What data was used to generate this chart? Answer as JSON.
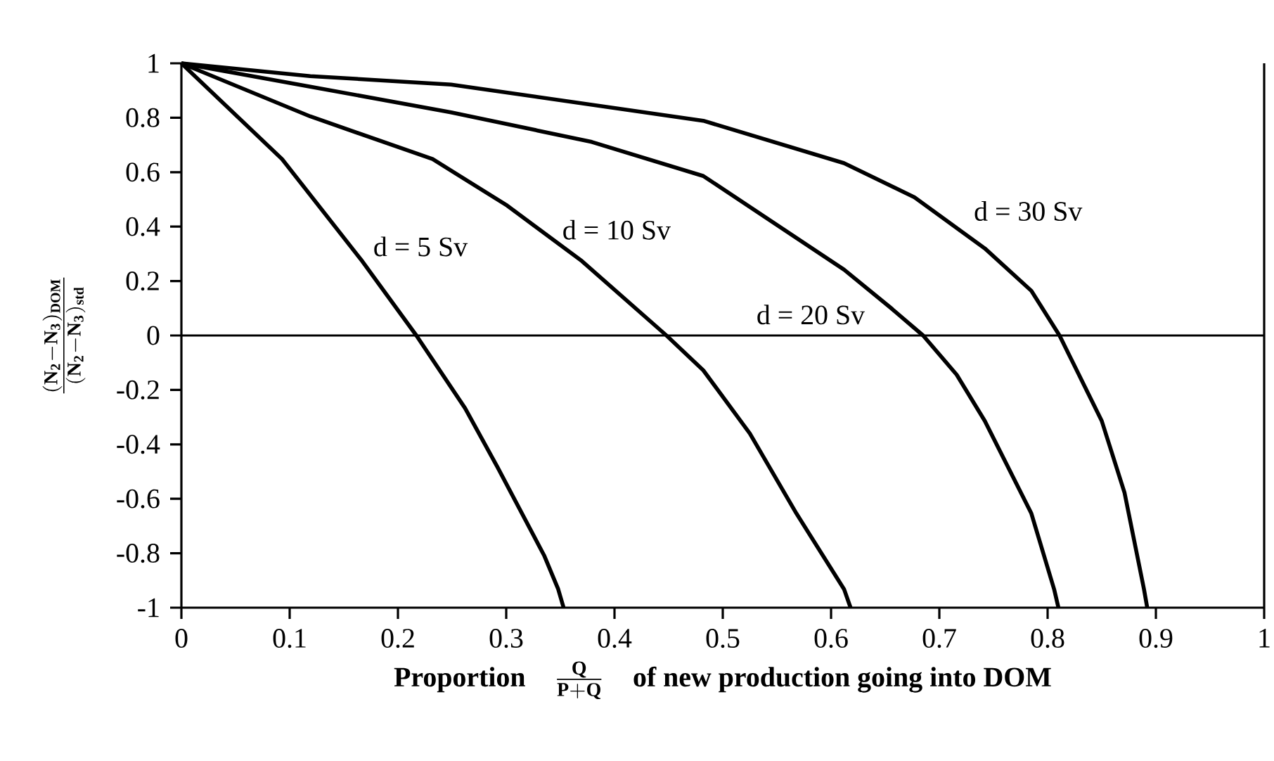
{
  "chart_data": {
    "type": "line",
    "xlabel": "\\textbf{Proportion}\\quad\\frac{\\mathbf{Q}}{\\mathbf{P + Q}}\\quad\\textbf{of new production going into DOM}",
    "ylabel": "\\frac{(\\mathbf{N_2 - N_3})_{\\mathbf{DOM}}}{(\\mathbf{N_2 - N_3})_{\\mathbf{std}}}",
    "xlim": [
      0,
      1
    ],
    "ylim": [
      -1,
      1
    ],
    "xticks": [
      0,
      0.1,
      0.2,
      0.3,
      0.4,
      0.5,
      0.6,
      0.7,
      0.8,
      0.9,
      1
    ],
    "yticks": [
      -1,
      -0.8,
      -0.6,
      -0.4,
      -0.2,
      0,
      0.2,
      0.4,
      0.6,
      0.8,
      1
    ],
    "grid": false,
    "marker": "none",
    "line_style": "solid",
    "ref_lines": [
      {
        "axis": "y",
        "value": 0,
        "color": "#000000"
      }
    ],
    "series": [
      {
        "name": "d = 5 Sv",
        "color": "#000000",
        "x": [
          0,
          0.093,
          0.167,
          0.217,
          0.262,
          0.292,
          0.335,
          0.348,
          0.353
        ],
        "values": [
          1,
          0.648,
          0.273,
          0,
          -0.267,
          -0.484,
          -0.808,
          -0.932,
          -1
        ]
      },
      {
        "name": "d = 10 Sv",
        "color": "#000000",
        "x": [
          0,
          0.119,
          0.232,
          0.301,
          0.37,
          0.448,
          0.482,
          0.525,
          0.568,
          0.612,
          0.618
        ],
        "values": [
          1,
          0.805,
          0.648,
          0.477,
          0.273,
          0,
          -0.128,
          -0.36,
          -0.654,
          -0.932,
          -1
        ]
      },
      {
        "name": "d = 20 Sv",
        "color": "#000000",
        "x": [
          0,
          0.119,
          0.249,
          0.379,
          0.482,
          0.612,
          0.655,
          0.685,
          0.716,
          0.742,
          0.785,
          0.806,
          0.81
        ],
        "values": [
          1,
          0.914,
          0.82,
          0.711,
          0.586,
          0.242,
          0.102,
          0,
          -0.144,
          -0.314,
          -0.654,
          -0.932,
          -1
        ]
      },
      {
        "name": "d = 30 Sv",
        "color": "#000000",
        "x": [
          0,
          0.119,
          0.249,
          0.482,
          0.612,
          0.677,
          0.742,
          0.785,
          0.811,
          0.85,
          0.871,
          0.889,
          0.892
        ],
        "values": [
          1,
          0.953,
          0.922,
          0.789,
          0.633,
          0.508,
          0.32,
          0.164,
          0,
          -0.314,
          -0.577,
          -0.932,
          -1
        ]
      }
    ]
  }
}
